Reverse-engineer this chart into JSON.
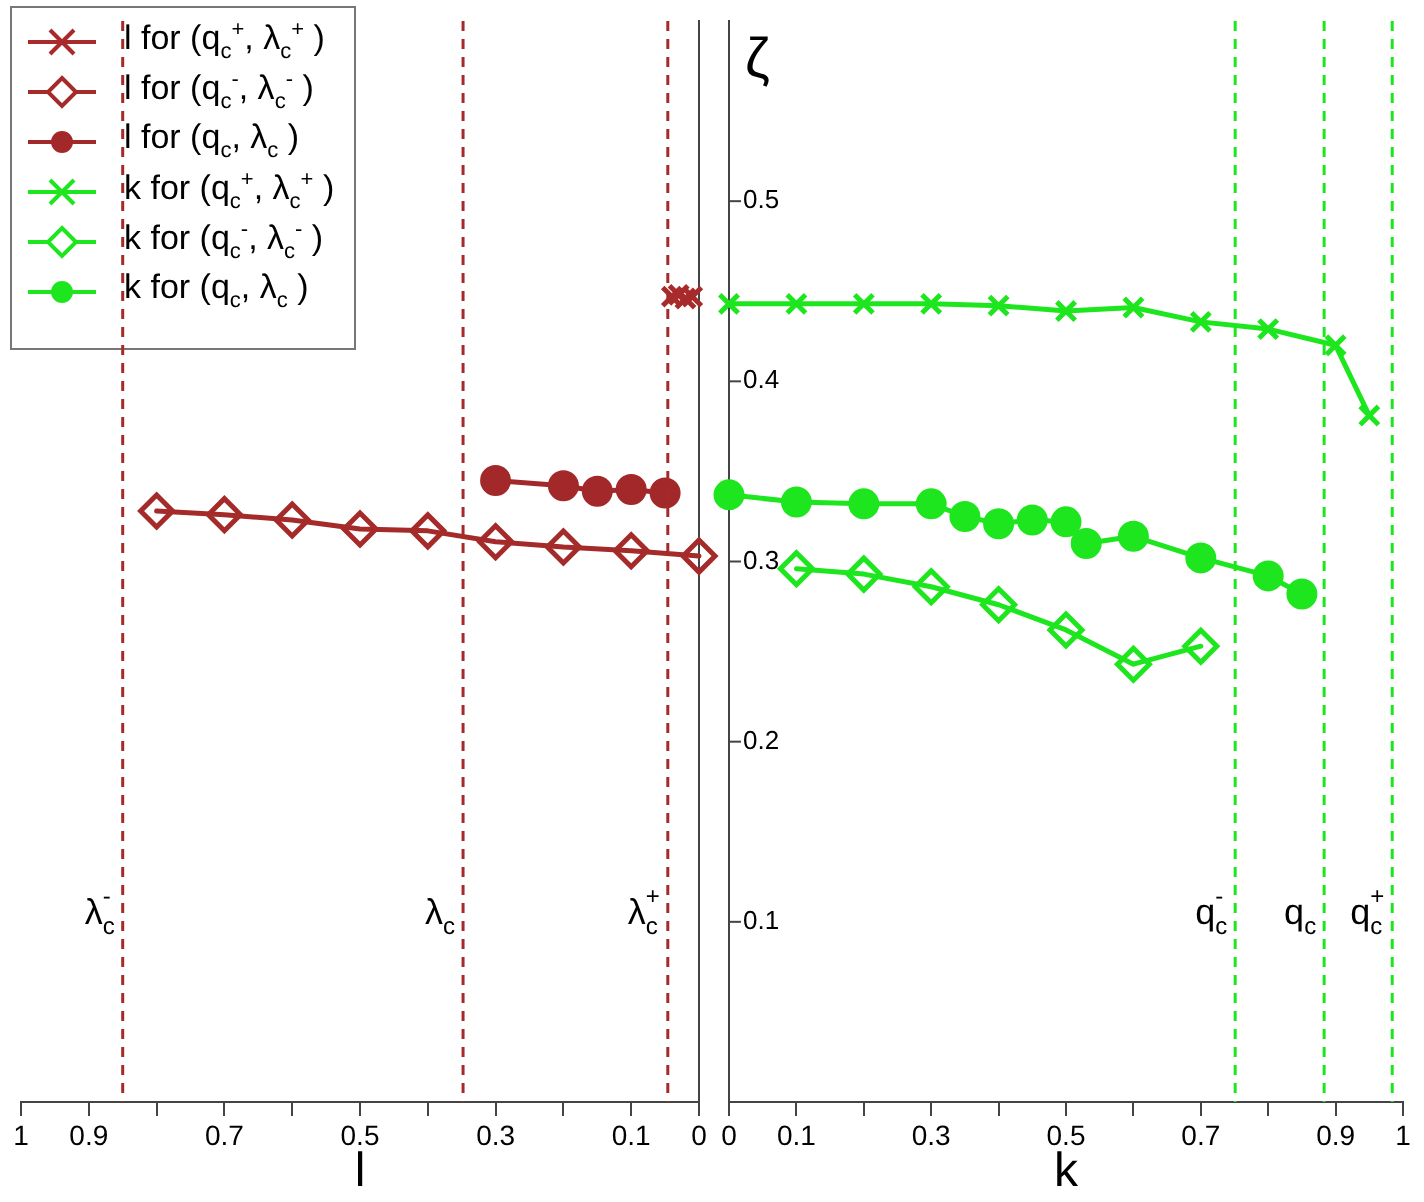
{
  "chart_data": [
    {
      "type": "line",
      "xlabel": "l",
      "xlim": [
        1,
        0
      ],
      "xticks": [
        1,
        0.9,
        {
          "value": 0.8,
          "label": null
        },
        0.7,
        {
          "value": 0.6,
          "label": null
        },
        0.5,
        {
          "value": 0.4,
          "label": null
        },
        0.3,
        {
          "value": 0.2,
          "label": null
        },
        0.1,
        0
      ],
      "ylim": [
        0,
        0.6
      ],
      "yticks": [
        0.1,
        0.2,
        0.3,
        0.4,
        0.5
      ],
      "tick_labels": "x",
      "grid": false,
      "legend": "top left",
      "line_style": "solid",
      "series": [
        {
          "name": "l for (q$_{c}$$^{+}$, λ$_{c}$$^{+}$ )",
          "type": "scatter",
          "color": "#a82a2a",
          "marker": "cross",
          "x": [
            0.04,
            0.03,
            0.02,
            0.01
          ],
          "values": [
            0.447,
            0.448,
            0.446,
            0.447
          ]
        },
        {
          "name": "l for (q$_{c}$$^{-}$, λ$_{c}$$^{-}$ )",
          "color": "#a52a2a",
          "marker": "diamond",
          "x": [
            0.8,
            0.7,
            0.6,
            0.5,
            0.4,
            0.3,
            0.2,
            0.1,
            0
          ],
          "values": [
            0.328,
            0.326,
            0.323,
            0.318,
            0.317,
            0.311,
            0.308,
            0.306,
            0.303
          ]
        },
        {
          "name": "l for (q$_{c}$, λ$_{c}$ )",
          "color": "#a2282a",
          "marker": "circle",
          "x": [
            0.3,
            0.2,
            0.15,
            0.1,
            0.05
          ],
          "values": [
            0.345,
            0.342,
            0.339,
            0.34,
            0.338
          ]
        }
      ],
      "ref_lines": [
        {
          "axis": "x",
          "value": 0.85,
          "label": "λ$_{c}$$^{-}$",
          "color": "#a52a2a",
          "line_style": "dashed"
        },
        {
          "axis": "x",
          "value": 0.348,
          "label": "λ$_{c}$",
          "color": "#a52a2a",
          "line_style": "dashed"
        },
        {
          "axis": "x",
          "value": 0.046,
          "label": "λ$_{c}$$^{+}$",
          "color": "#a52a2a",
          "line_style": "dashed"
        }
      ]
    },
    {
      "type": "line",
      "xlabel": "k",
      "ylabel": "ζ",
      "xlim": [
        0,
        1
      ],
      "xticks": [
        0,
        0.1,
        {
          "value": 0.2,
          "label": null
        },
        0.3,
        {
          "value": 0.4,
          "label": null
        },
        0.5,
        {
          "value": 0.6,
          "label": null
        },
        0.7,
        {
          "value": 0.8,
          "label": null
        },
        0.9,
        1
      ],
      "ylim": [
        0,
        0.6
      ],
      "yticks": [
        0.1,
        0.2,
        0.3,
        0.4,
        0.5
      ],
      "grid": false,
      "legend": "top left",
      "line_style": "solid",
      "series": [
        {
          "name": "k for (q$_{c}$$^{+}$, λ$_{c}$$^{+}$ )",
          "color": "#1ee61e",
          "marker": "cross",
          "x": [
            0,
            0.1,
            0.2,
            0.3,
            0.4,
            0.5,
            0.6,
            0.7,
            0.8,
            0.9,
            0.95
          ],
          "values": [
            0.443,
            0.443,
            0.443,
            0.443,
            0.442,
            0.439,
            0.441,
            0.433,
            0.429,
            0.42,
            0.381
          ]
        },
        {
          "name": "k for (q$_{c}$$^{-}$, λ$_{c}$$^{-}$ )",
          "color": "#1ee61e",
          "marker": "diamond",
          "x": [
            0.1,
            0.2,
            0.3,
            0.4,
            0.5,
            0.6,
            0.7
          ],
          "values": [
            0.296,
            0.293,
            0.286,
            0.276,
            0.262,
            0.243,
            0.253
          ]
        },
        {
          "name": "k for (q$_{c}$, λ$_{c}$ )",
          "color": "#1ee61e",
          "marker": "circle",
          "x": [
            0,
            0.1,
            0.2,
            0.3,
            0.35,
            0.4,
            0.45,
            0.5,
            0.53,
            0.6,
            0.7,
            0.8,
            0.85
          ],
          "values": [
            0.337,
            0.333,
            0.332,
            0.332,
            0.325,
            0.321,
            0.323,
            0.322,
            0.31,
            0.314,
            0.302,
            0.292,
            0.282
          ]
        }
      ],
      "ref_lines": [
        {
          "axis": "x",
          "value": 0.751,
          "label": "q$_{c}$$^{-}$",
          "color": "#1ee61e",
          "line_style": "dashed"
        },
        {
          "axis": "x",
          "value": 0.883,
          "label": "q$_{c}$",
          "color": "#1ee61e",
          "line_style": "dashed"
        },
        {
          "axis": "x",
          "value": 0.984,
          "label": "q$_{c}$$^{+}$",
          "color": "#1ee61e",
          "line_style": "dashed"
        }
      ]
    }
  ]
}
